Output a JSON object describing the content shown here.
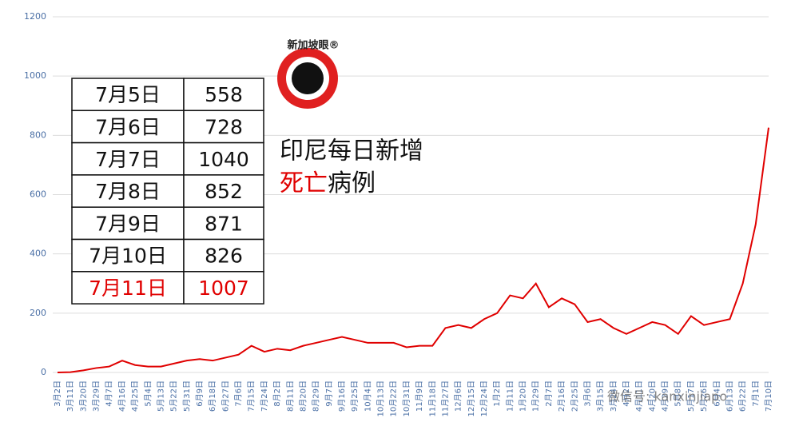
{
  "chart_data": {
    "type": "line",
    "title_lines": [
      "印尼每日新增",
      "死亡",
      "病例"
    ],
    "categories": [
      "3月2日",
      "3月11日",
      "3月20日",
      "3月29日",
      "4月7日",
      "4月16日",
      "4月25日",
      "5月4日",
      "5月13日",
      "5月22日",
      "5月31日",
      "6月9日",
      "6月18日",
      "6月27日",
      "7月6日",
      "7月15日",
      "7月24日",
      "8月2日",
      "8月11日",
      "8月20日",
      "8月29日",
      "9月7日",
      "9月16日",
      "9月25日",
      "10月4日",
      "10月13日",
      "10月22日",
      "10月31日",
      "11月9日",
      "11月18日",
      "11月27日",
      "12月6日",
      "12月15日",
      "12月24日",
      "1月2日",
      "1月11日",
      "1月20日",
      "1月29日",
      "2月7日",
      "2月16日",
      "2月25日",
      "3月6日",
      "3月15日",
      "3月24日",
      "4月2日",
      "4月11日",
      "4月20日",
      "4月29日",
      "5月8日",
      "5月17日",
      "5月26日",
      "6月4日",
      "6月13日",
      "6月22日",
      "7月1日",
      "7月10日"
    ],
    "values": [
      0,
      1,
      7,
      15,
      20,
      40,
      25,
      20,
      20,
      30,
      40,
      45,
      40,
      50,
      60,
      90,
      70,
      80,
      75,
      90,
      100,
      110,
      120,
      110,
      100,
      100,
      100,
      85,
      90,
      90,
      150,
      160,
      150,
      180,
      200,
      260,
      250,
      300,
      220,
      250,
      230,
      170,
      180,
      150,
      130,
      150,
      170,
      160,
      130,
      190,
      160,
      170,
      180,
      300,
      500,
      826
    ],
    "color": "#e00000",
    "ylim": [
      0,
      1200
    ],
    "yticks": [
      0,
      200,
      400,
      600,
      800,
      1000,
      1200
    ],
    "grid": true
  },
  "table": {
    "rows": [
      [
        "7月5日",
        558
      ],
      [
        "7月6日",
        728
      ],
      [
        "7月7日",
        1040
      ],
      [
        "7月8日",
        852
      ],
      [
        "7月9日",
        871
      ],
      [
        "7月10日",
        826
      ],
      [
        "7月11日",
        1007
      ]
    ]
  },
  "logo": {
    "text": "新加坡眼®"
  },
  "watermark": "微信号: kanxinjiapo"
}
